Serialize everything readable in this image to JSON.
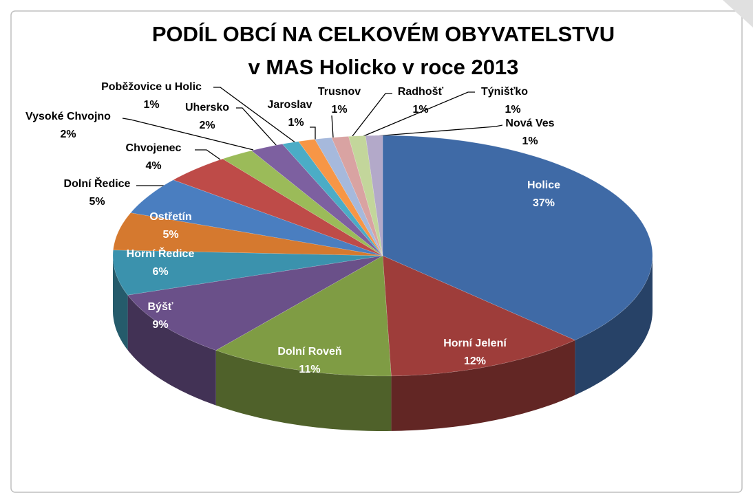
{
  "chart_data": {
    "type": "pie3d",
    "title": "PODÍL OBCÍ NA CELKOVÉM OBYVATELSTVU",
    "subtitle": "v MAS Holicko v roce 2013",
    "categories": [
      "Holice",
      "Horní Jelení",
      "Dolní Roveň",
      "Býšť",
      "Horní Ředice",
      "Ostřetín",
      "Dolní Ředice",
      "Chvojenec",
      "Vysoké Chvojno",
      "Uhersko",
      "Poběžovice u Holic",
      "Jaroslav",
      "Trusnov",
      "Radhošť",
      "Týnišťko",
      "Nová Ves"
    ],
    "values": [
      37,
      12,
      11,
      9,
      6,
      5,
      5,
      4,
      2,
      2,
      1,
      1,
      1,
      1,
      1,
      1
    ],
    "value_labels": [
      "37%",
      "12%",
      "11%",
      "9%",
      "6%",
      "5%",
      "5%",
      "4%",
      "2%",
      "2%",
      "1%",
      "1%",
      "1%",
      "1%",
      "1%",
      "1%"
    ],
    "colors": [
      "#3f6aa6",
      "#9e3d3a",
      "#7f9c44",
      "#6a5089",
      "#3b92ad",
      "#d5792f",
      "#4a7ec0",
      "#be4b48",
      "#9bbb59",
      "#7d60a0",
      "#4bacc6",
      "#f79646",
      "#a6b9dc",
      "#d9a3a2",
      "#c3d69b",
      "#b3a9c9"
    ]
  }
}
